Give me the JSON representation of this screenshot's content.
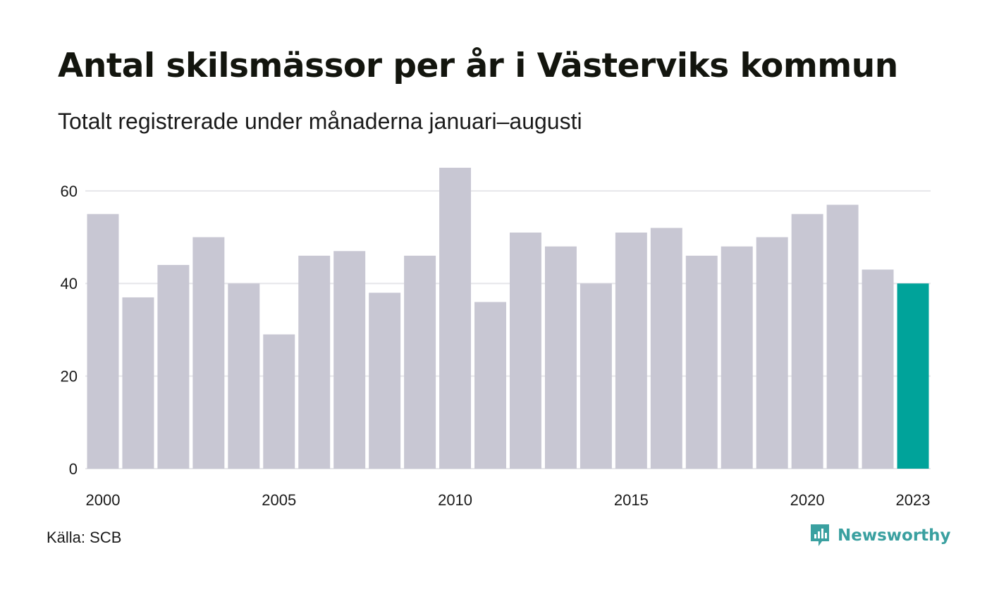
{
  "title": "Antal skilsmässor per år i Västerviks kommun",
  "subtitle": "Totalt registrerade under månaderna januari–augusti",
  "source": "Källa: SCB",
  "brand": {
    "name": "Newsworthy",
    "icon": "newsworthy-logo-icon",
    "color": "#3aa0a0"
  },
  "colors": {
    "bar": "#c8c7d3",
    "highlight": "#00a39a",
    "grid": "#e6e6ea",
    "text": "#1b1b1b"
  },
  "chart_data": {
    "type": "bar",
    "categories": [
      "2000",
      "2001",
      "2002",
      "2003",
      "2004",
      "2005",
      "2006",
      "2007",
      "2008",
      "2009",
      "2010",
      "2011",
      "2012",
      "2013",
      "2014",
      "2015",
      "2016",
      "2017",
      "2018",
      "2019",
      "2020",
      "2021",
      "2022",
      "2023"
    ],
    "values": [
      55,
      37,
      44,
      50,
      40,
      29,
      46,
      47,
      38,
      46,
      65,
      36,
      51,
      48,
      40,
      51,
      52,
      46,
      48,
      50,
      55,
      57,
      43,
      40
    ],
    "highlight_category": "2023",
    "x_tick_labels": [
      "2000",
      "2005",
      "2010",
      "2015",
      "2020",
      "2023"
    ],
    "y_ticks": [
      0,
      20,
      40,
      60
    ],
    "ylim": [
      0,
      65
    ],
    "xlabel": "",
    "ylabel": "",
    "grid": true,
    "legend": "none"
  }
}
